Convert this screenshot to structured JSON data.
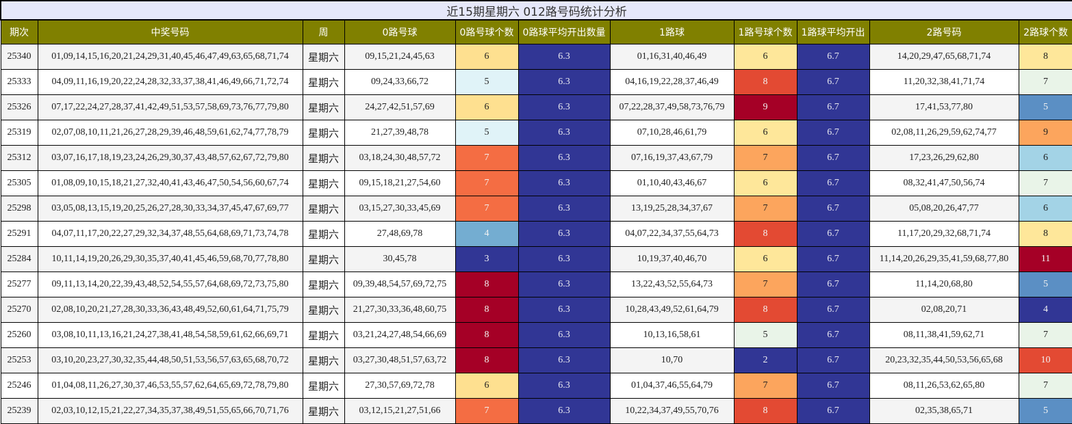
{
  "title": "近15期星期六 012路号码统计分析",
  "headers": [
    "期次",
    "中奖号码",
    "周",
    "0路号球",
    "0路号球个数",
    "0路球平均开出数量",
    "1路球",
    "1路号球个数",
    "1路球平均开出",
    "2路号码",
    "2路球个数"
  ],
  "colors": {
    "header_bg": "#808000",
    "title_bg": "#e6e8fa",
    "avg_bg": "#313695"
  },
  "rows": [
    {
      "issue": "25340",
      "numbers": "01,09,14,15,16,20,21,24,29,31,40,45,46,47,49,63,65,68,71,74",
      "week": "星期六",
      "r0": "09,15,21,24,45,63",
      "r0c": "6",
      "r0color": "#fee090",
      "r0avg": "6.3",
      "r1": "01,16,31,40,46,49",
      "r1c": "6",
      "r1color": "#fee79a",
      "r1avg": "6.7",
      "r2": "14,20,29,47,65,68,71,74",
      "r2c": "8",
      "r2color": "#fee79a"
    },
    {
      "issue": "25333",
      "numbers": "04,09,11,16,19,20,22,24,28,32,33,37,38,41,46,49,66,71,72,74",
      "week": "星期六",
      "r0": "09,24,33,66,72",
      "r0c": "5",
      "r0color": "#e0f3f8",
      "r0avg": "6.3",
      "r1": "04,16,19,22,28,37,46,49",
      "r1c": "8",
      "r1color": "#e34a33",
      "r1avg": "6.7",
      "r2": "11,20,32,38,41,71,74",
      "r2c": "7",
      "r2color": "#e9f4e8"
    },
    {
      "issue": "25326",
      "numbers": "07,17,22,24,27,28,37,41,42,49,51,53,57,58,69,73,76,77,79,80",
      "week": "星期六",
      "r0": "24,27,42,51,57,69",
      "r0c": "6",
      "r0color": "#fee090",
      "r0avg": "6.3",
      "r1": "07,22,28,37,49,58,73,76,79",
      "r1c": "9",
      "r1color": "#a50026",
      "r1avg": "6.7",
      "r2": "17,41,53,77,80",
      "r2c": "5",
      "r2color": "#5b8fc4"
    },
    {
      "issue": "25319",
      "numbers": "02,07,08,10,11,21,26,27,28,29,39,46,48,59,61,62,74,77,78,79",
      "week": "星期六",
      "r0": "21,27,39,48,78",
      "r0c": "5",
      "r0color": "#e0f3f8",
      "r0avg": "6.3",
      "r1": "07,10,28,46,61,79",
      "r1c": "6",
      "r1color": "#fee79a",
      "r1avg": "6.7",
      "r2": "02,08,11,26,29,59,62,74,77",
      "r2c": "9",
      "r2color": "#fca55d"
    },
    {
      "issue": "25312",
      "numbers": "03,07,16,17,18,19,23,24,26,29,30,37,43,48,57,62,67,72,79,80",
      "week": "星期六",
      "r0": "03,18,24,30,48,57,72",
      "r0c": "7",
      "r0color": "#f46d43",
      "r0avg": "6.3",
      "r1": "07,16,19,37,43,67,79",
      "r1c": "7",
      "r1color": "#fca55d",
      "r1avg": "6.7",
      "r2": "17,23,26,29,62,80",
      "r2c": "6",
      "r2color": "#a3d3e6"
    },
    {
      "issue": "25305",
      "numbers": "01,08,09,10,15,18,21,27,32,40,41,43,46,47,50,54,56,60,67,74",
      "week": "星期六",
      "r0": "09,15,18,21,27,54,60",
      "r0c": "7",
      "r0color": "#f46d43",
      "r0avg": "6.3",
      "r1": "01,10,40,43,46,67",
      "r1c": "6",
      "r1color": "#fee79a",
      "r1avg": "6.7",
      "r2": "08,32,41,47,50,56,74",
      "r2c": "7",
      "r2color": "#e9f4e8"
    },
    {
      "issue": "25298",
      "numbers": "03,05,08,13,15,19,20,25,26,27,28,30,33,34,37,45,47,67,69,77",
      "week": "星期六",
      "r0": "03,15,27,30,33,45,69",
      "r0c": "7",
      "r0color": "#f46d43",
      "r0avg": "6.3",
      "r1": "13,19,25,28,34,37,67",
      "r1c": "7",
      "r1color": "#fca55d",
      "r1avg": "6.7",
      "r2": "05,08,20,26,47,77",
      "r2c": "6",
      "r2color": "#a3d3e6"
    },
    {
      "issue": "25291",
      "numbers": "04,07,11,17,20,22,27,29,32,34,37,48,55,64,68,69,71,73,74,78",
      "week": "星期六",
      "r0": "27,48,69,78",
      "r0c": "4",
      "r0color": "#74add1",
      "r0avg": "6.3",
      "r1": "04,07,22,34,37,55,64,73",
      "r1c": "8",
      "r1color": "#e34a33",
      "r1avg": "6.7",
      "r2": "11,17,20,29,32,68,71,74",
      "r2c": "8",
      "r2color": "#fee79a"
    },
    {
      "issue": "25284",
      "numbers": "10,11,14,19,20,26,29,30,35,37,40,41,45,46,59,68,70,77,78,80",
      "week": "星期六",
      "r0": "30,45,78",
      "r0c": "3",
      "r0color": "#313695",
      "r0avg": "6.3",
      "r1": "10,19,37,40,46,70",
      "r1c": "6",
      "r1color": "#fee79a",
      "r1avg": "6.7",
      "r2": "11,14,20,26,29,35,41,59,68,77,80",
      "r2c": "11",
      "r2color": "#a50026"
    },
    {
      "issue": "25277",
      "numbers": "09,11,13,14,20,22,39,43,48,52,54,55,57,64,68,69,72,73,75,80",
      "week": "星期六",
      "r0": "09,39,48,54,57,69,72,75",
      "r0c": "8",
      "r0color": "#a50026",
      "r0avg": "6.3",
      "r1": "13,22,43,52,55,64,73",
      "r1c": "7",
      "r1color": "#fca55d",
      "r1avg": "6.7",
      "r2": "11,14,20,68,80",
      "r2c": "5",
      "r2color": "#5b8fc4"
    },
    {
      "issue": "25270",
      "numbers": "02,08,10,20,21,27,28,30,33,36,43,48,49,52,60,61,64,71,75,79",
      "week": "星期六",
      "r0": "21,27,30,33,36,48,60,75",
      "r0c": "8",
      "r0color": "#a50026",
      "r0avg": "6.3",
      "r1": "10,28,43,49,52,61,64,79",
      "r1c": "8",
      "r1color": "#e34a33",
      "r1avg": "6.7",
      "r2": "02,08,20,71",
      "r2c": "4",
      "r2color": "#313695"
    },
    {
      "issue": "25260",
      "numbers": "03,08,10,11,13,16,21,24,27,38,41,48,54,58,59,61,62,66,69,71",
      "week": "星期六",
      "r0": "03,21,24,27,48,54,66,69",
      "r0c": "8",
      "r0color": "#a50026",
      "r0avg": "6.3",
      "r1": "10,13,16,58,61",
      "r1c": "5",
      "r1color": "#e9f4e8",
      "r1avg": "6.7",
      "r2": "08,11,38,41,59,62,71",
      "r2c": "7",
      "r2color": "#e9f4e8"
    },
    {
      "issue": "25253",
      "numbers": "03,10,20,23,27,30,32,35,44,48,50,51,53,56,57,63,65,68,70,72",
      "week": "星期六",
      "r0": "03,27,30,48,51,57,63,72",
      "r0c": "8",
      "r0color": "#a50026",
      "r0avg": "6.3",
      "r1": "10,70",
      "r1c": "2",
      "r1color": "#313695",
      "r1avg": "6.7",
      "r2": "20,23,32,35,44,50,53,56,65,68",
      "r2c": "10",
      "r2color": "#e34a33"
    },
    {
      "issue": "25246",
      "numbers": "01,04,08,11,26,27,30,37,46,53,55,57,62,64,65,69,72,78,79,80",
      "week": "星期六",
      "r0": "27,30,57,69,72,78",
      "r0c": "6",
      "r0color": "#fee090",
      "r0avg": "6.3",
      "r1": "01,04,37,46,55,64,79",
      "r1c": "7",
      "r1color": "#fca55d",
      "r1avg": "6.7",
      "r2": "08,11,26,53,62,65,80",
      "r2c": "7",
      "r2color": "#e9f4e8"
    },
    {
      "issue": "25239",
      "numbers": "02,03,10,12,15,21,22,27,34,35,37,38,49,51,55,65,66,70,71,76",
      "week": "星期六",
      "r0": "03,12,15,21,27,51,66",
      "r0c": "7",
      "r0color": "#f46d43",
      "r0avg": "6.3",
      "r1": "10,22,34,37,49,55,70,76",
      "r1c": "8",
      "r1color": "#e34a33",
      "r1avg": "6.7",
      "r2": "02,35,38,65,71",
      "r2c": "5",
      "r2color": "#5b8fc4"
    }
  ]
}
